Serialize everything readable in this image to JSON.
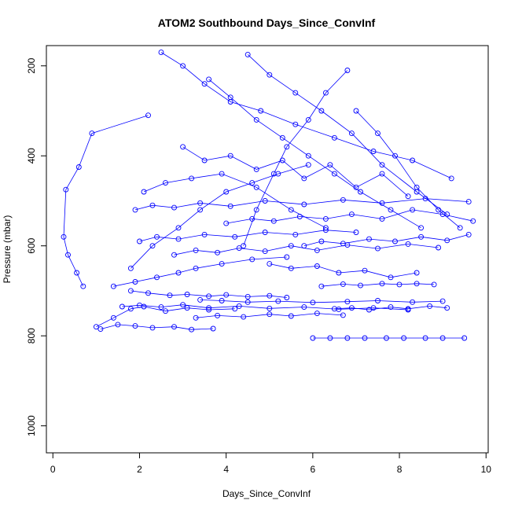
{
  "chart_data": {
    "type": "line",
    "title": "ATOM2 Southbound Days_Since_ConvInf",
    "xlabel": "Days_Since_ConvInf",
    "ylabel": "Pressure (mbar)",
    "xlim": [
      -0.15,
      10.05
    ],
    "ylim": [
      1060,
      155
    ],
    "y_reversed": true,
    "x_ticks": [
      0,
      2,
      4,
      6,
      8,
      10
    ],
    "y_ticks": [
      200,
      400,
      600,
      800,
      1000
    ],
    "grid": false,
    "legend": "none",
    "color": "#0000ff",
    "series": [
      {
        "x": [
          2.2,
          0.9,
          0.6,
          0.3,
          0.25,
          0.35,
          0.55,
          0.7
        ],
        "y": [
          310,
          350,
          425,
          475,
          580,
          620,
          660,
          690
        ]
      },
      {
        "x": [
          1.0,
          1.4,
          1.8,
          2.1,
          2.6,
          3.1,
          3.6,
          4.2
        ],
        "y": [
          780,
          760,
          740,
          735,
          745,
          738,
          742,
          740
        ]
      },
      {
        "x": [
          1.1,
          1.5,
          1.9,
          2.3,
          2.8,
          3.2,
          3.7
        ],
        "y": [
          785,
          775,
          778,
          782,
          780,
          786,
          784
        ]
      },
      {
        "x": [
          6.0,
          6.4,
          6.8,
          7.2,
          7.7,
          8.1,
          8.6,
          9.0,
          9.5
        ],
        "y": [
          805,
          805,
          805,
          805,
          805,
          805,
          805,
          805,
          805
        ]
      },
      {
        "x": [
          6.8,
          6.3,
          5.9,
          5.4,
          5.1,
          4.7,
          4.4
        ],
        "y": [
          210,
          260,
          320,
          380,
          440,
          520,
          600
        ]
      },
      {
        "x": [
          1.8,
          2.3,
          2.9,
          3.4,
          4.0,
          4.6,
          5.2,
          5.9
        ],
        "y": [
          650,
          600,
          560,
          520,
          480,
          460,
          440,
          420
        ]
      },
      {
        "x": [
          3.4,
          3.9,
          4.5,
          5.2,
          6.0,
          6.8,
          7.5,
          8.3,
          9.0
        ],
        "y": [
          720,
          722,
          725,
          723,
          726,
          724,
          722,
          725,
          723
        ]
      },
      {
        "x": [
          2.1,
          2.6,
          3.2,
          3.9,
          4.7,
          5.5,
          6.3
        ],
        "y": [
          480,
          460,
          450,
          440,
          470,
          520,
          560
        ]
      },
      {
        "x": [
          2.5,
          3.0,
          3.5,
          4.1,
          4.8,
          5.6,
          6.5,
          7.4,
          8.3,
          9.2
        ],
        "y": [
          170,
          200,
          240,
          280,
          300,
          330,
          360,
          390,
          410,
          450
        ]
      },
      {
        "x": [
          1.4,
          1.9,
          2.4,
          2.9,
          3.3,
          3.9,
          4.6,
          5.4
        ],
        "y": [
          690,
          680,
          670,
          660,
          650,
          640,
          630,
          625
        ]
      },
      {
        "x": [
          6.2,
          6.7,
          7.1,
          7.6,
          8.0,
          8.4,
          8.8
        ],
        "y": [
          690,
          685,
          688,
          684,
          686,
          684,
          686
        ]
      },
      {
        "x": [
          4.0,
          4.6,
          5.1,
          5.7,
          6.3,
          6.9,
          7.6,
          8.3,
          9.0,
          9.7
        ],
        "y": [
          550,
          540,
          545,
          535,
          540,
          530,
          540,
          520,
          530,
          545
        ]
      },
      {
        "x": [
          3.0,
          3.5,
          4.1,
          4.7,
          5.3,
          5.8,
          6.4,
          7.0,
          7.6,
          8.2
        ],
        "y": [
          380,
          410,
          400,
          430,
          410,
          450,
          420,
          470,
          440,
          490
        ]
      },
      {
        "x": [
          1.6,
          2.0,
          2.5,
          3.0,
          3.6,
          4.3,
          5.0,
          5.8,
          6.6,
          7.4,
          8.2
        ],
        "y": [
          735,
          732,
          736,
          731,
          738,
          734,
          739,
          736,
          741,
          738,
          742
        ]
      },
      {
        "x": [
          5.0,
          5.5,
          6.1,
          6.6,
          7.2,
          7.8,
          8.4
        ],
        "y": [
          640,
          650,
          645,
          660,
          655,
          670,
          660
        ]
      },
      {
        "x": [
          2.0,
          2.4,
          2.9,
          3.5,
          4.2,
          4.9,
          5.6,
          6.3,
          7.0
        ],
        "y": [
          590,
          580,
          585,
          575,
          580,
          570,
          575,
          565,
          570
        ]
      },
      {
        "x": [
          7.0,
          7.5,
          7.9,
          8.4,
          8.9,
          9.4
        ],
        "y": [
          300,
          350,
          400,
          470,
          520,
          560
        ]
      },
      {
        "x": [
          3.3,
          3.8,
          4.4,
          5.0,
          5.5,
          6.1,
          6.7
        ],
        "y": [
          760,
          755,
          758,
          752,
          756,
          750,
          754
        ]
      },
      {
        "x": [
          1.8,
          2.2,
          2.7,
          3.1,
          3.6,
          4.0,
          4.5,
          5.0,
          5.4
        ],
        "y": [
          700,
          705,
          710,
          708,
          712,
          709,
          713,
          711,
          715
        ]
      },
      {
        "x": [
          4.5,
          5.0,
          5.6,
          6.2,
          6.9,
          7.6,
          8.4,
          9.1
        ],
        "y": [
          175,
          220,
          260,
          300,
          350,
          420,
          480,
          530
        ]
      },
      {
        "x": [
          2.8,
          3.3,
          3.8,
          4.3,
          4.9,
          5.5,
          6.1,
          6.8,
          7.5,
          8.2,
          8.9
        ],
        "y": [
          620,
          610,
          615,
          605,
          612,
          600,
          610,
          598,
          606,
          596,
          604
        ]
      },
      {
        "x": [
          5.8,
          6.2,
          6.7,
          7.3,
          7.9,
          8.5,
          9.1,
          9.6
        ],
        "y": [
          600,
          590,
          595,
          585,
          590,
          580,
          588,
          575
        ]
      },
      {
        "x": [
          1.9,
          2.3,
          2.8,
          3.4,
          4.1,
          4.9,
          5.8,
          6.7,
          7.6,
          8.6,
          9.6
        ],
        "y": [
          520,
          510,
          515,
          505,
          512,
          500,
          508,
          498,
          505,
          495,
          502
        ]
      },
      {
        "x": [
          3.6,
          4.1,
          4.7,
          5.3,
          5.9,
          6.5,
          7.1,
          7.8,
          8.5
        ],
        "y": [
          230,
          270,
          320,
          360,
          400,
          440,
          480,
          520,
          560
        ]
      },
      {
        "x": [
          6.5,
          6.9,
          7.3,
          7.8,
          8.2,
          8.7,
          9.1
        ],
        "y": [
          740,
          738,
          742,
          736,
          740,
          734,
          738
        ]
      }
    ]
  }
}
